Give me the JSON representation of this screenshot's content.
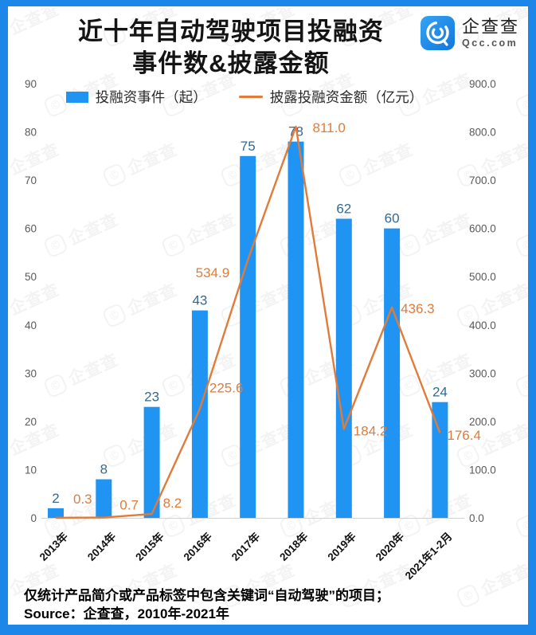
{
  "frame": {
    "border_color": "#1c87e9"
  },
  "header": {
    "title_line1": "近十年自动驾驶项目投融资",
    "title_line2": "事件数&披露金额",
    "logo": {
      "name": "企查查",
      "domain": "Qcc.com",
      "icon": "qcc-spiral-icon",
      "color": "#1c87e9"
    }
  },
  "chart_data": {
    "type": "bar",
    "categories": [
      "2013年",
      "2014年",
      "2015年",
      "2016年",
      "2017年",
      "2018年",
      "2019年",
      "2020年",
      "2021年1-2月"
    ],
    "series": [
      {
        "name": "投融资事件（起）",
        "type": "bar",
        "axis": "left",
        "color": "#2094f3",
        "label_color": "#35688f",
        "values": [
          2,
          8,
          23,
          43,
          75,
          78,
          62,
          60,
          24
        ]
      },
      {
        "name": "披露投融资金额（亿元）",
        "type": "line",
        "axis": "right",
        "color": "#e07b3a",
        "values": [
          0.3,
          0.7,
          8.2,
          225.6,
          534.9,
          811.0,
          184.2,
          436.3,
          176.4
        ],
        "label_offsets": [
          {
            "dx": 22,
            "dy": -18,
            "anchor": "start"
          },
          {
            "dx": 20,
            "dy": -10,
            "anchor": "start"
          },
          {
            "dx": 14,
            "dy": -8,
            "anchor": "start"
          },
          {
            "dx": 12,
            "dy": -21,
            "anchor": "start"
          },
          {
            "dx": -23,
            "dy": 22,
            "anchor": "end"
          },
          {
            "dx": 21,
            "dy": 7,
            "anchor": "start"
          },
          {
            "dx": 12,
            "dy": 8,
            "anchor": "start"
          },
          {
            "dx": 11,
            "dy": 7,
            "anchor": "start"
          },
          {
            "dx": 9,
            "dy": 9,
            "anchor": "start"
          }
        ]
      }
    ],
    "left_axis": {
      "min": 0,
      "max": 90,
      "step": 10,
      "color": "#595959",
      "ticks": [
        "0",
        "10",
        "20",
        "30",
        "40",
        "50",
        "60",
        "70",
        "80",
        "90"
      ]
    },
    "right_axis": {
      "min": 0,
      "max": 900,
      "step": 100,
      "color": "#595959",
      "ticks": [
        "0.0",
        "100.0",
        "200.0",
        "300.0",
        "400.0",
        "500.0",
        "600.0",
        "700.0",
        "800.0",
        "900.0"
      ]
    },
    "legend_position": "top",
    "grid": false,
    "x_label_color": "#111111",
    "axis_line_color": "#d2d2d2"
  },
  "footer": {
    "line1": "仅统计产品简介或产品标签中包含关键词“自动驾驶”的项目；",
    "line2": "Source：企查查，2010年-2021年"
  },
  "watermark": {
    "text": "企查查",
    "icon": "qcc-logo-watermark-icon"
  }
}
